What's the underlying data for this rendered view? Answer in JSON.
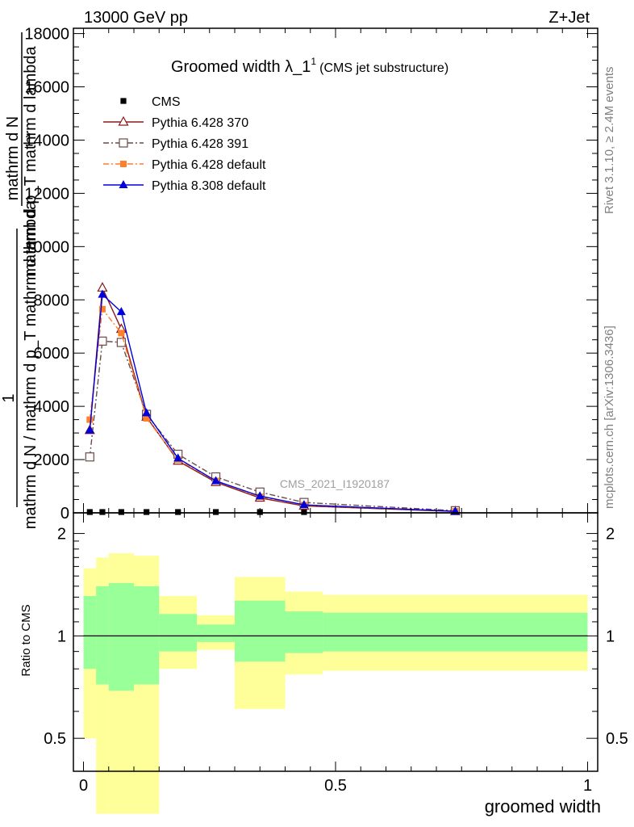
{
  "header": {
    "left": "13000 GeV pp",
    "right": "Z+Jet",
    "title_main": "Groomed width ",
    "title_lambda": "λ_1",
    "title_sup": "1",
    "title_paren": "(CMS jet substructure)",
    "side_rivet": "Rivet 3.1.10, ≥ 2.4M events",
    "side_mcplots": "mcplots.cern.ch [arXiv:1306.3436]",
    "watermark": "CMS_2021_I1920187"
  },
  "axis": {
    "ylabel_one": "1",
    "ylabel_num": "mathrm d N",
    "ylabel_den": "mathrm d N / mathrm d p_T mathrm d lambda",
    "ylabel_extra": "mathrm d p_T mathrm d lambda",
    "ratio_label": "Ratio to CMS",
    "xlabel": "groomed width",
    "x_ticks": [
      "0",
      "0.5",
      "1"
    ],
    "main_ticks": [
      "0",
      "2000",
      "4000",
      "6000",
      "8000",
      "10000",
      "12000",
      "14000",
      "16000",
      "18000"
    ],
    "ratio_ticks": [
      "0.5",
      "1",
      "2"
    ]
  },
  "legend": [
    {
      "key": "cms",
      "label": "CMS"
    },
    {
      "key": "p370",
      "label": "Pythia 6.428 370"
    },
    {
      "key": "p391",
      "label": "Pythia 6.428 391"
    },
    {
      "key": "p6def",
      "label": "Pythia 6.428 default"
    },
    {
      "key": "p8def",
      "label": "Pythia 8.308 default"
    }
  ],
  "chart_data": {
    "type": "line",
    "xlabel": "groomed width",
    "xlim": [
      -0.02,
      1.02
    ],
    "ylim": [
      0,
      18200
    ],
    "ratio_ylim": [
      0.4,
      2.3
    ],
    "x": [
      0.0125,
      0.0375,
      0.075,
      0.125,
      0.1875,
      0.2625,
      0.35,
      0.4375,
      0.7375
    ],
    "series": [
      {
        "name": "CMS",
        "color": "#000000",
        "marker": "square-filled",
        "values": [
          30,
          30,
          30,
          30,
          30,
          30,
          30,
          30,
          30
        ]
      },
      {
        "name": "Pythia 6.428 370",
        "color": "#8b1a1a",
        "dash": "solid",
        "marker": "triangle-open",
        "values": [
          3100,
          8450,
          6900,
          3600,
          1950,
          1150,
          560,
          260,
          50
        ]
      },
      {
        "name": "Pythia 6.428 391",
        "color": "#6b4a4a",
        "dash": "dashdot",
        "marker": "square-open",
        "values": [
          2100,
          6450,
          6400,
          3700,
          2200,
          1350,
          780,
          390,
          80
        ]
      },
      {
        "name": "Pythia 6.428 default",
        "color": "#ff7f2a",
        "dash": "dashdot",
        "marker": "square-filled",
        "values": [
          3500,
          7650,
          6750,
          3550,
          2000,
          1200,
          600,
          290,
          60
        ]
      },
      {
        "name": "Pythia 8.308 default",
        "color": "#0000dd",
        "dash": "solid",
        "marker": "triangle-filled",
        "values": [
          3100,
          8200,
          7550,
          3750,
          2050,
          1200,
          630,
          300,
          60
        ]
      }
    ],
    "ratio_bands": [
      {
        "x0": 0.0,
        "x1": 0.025,
        "y1": [
          0.8,
          1.31
        ],
        "y2": [
          0.5,
          1.58
        ]
      },
      {
        "x0": 0.025,
        "x1": 0.05,
        "y1": [
          0.72,
          1.4
        ],
        "y2": [
          0.3,
          1.7
        ]
      },
      {
        "x0": 0.05,
        "x1": 0.1,
        "y1": [
          0.69,
          1.43
        ],
        "y2": [
          0.3,
          1.75
        ]
      },
      {
        "x0": 0.1,
        "x1": 0.15,
        "y1": [
          0.72,
          1.4
        ],
        "y2": [
          0.3,
          1.72
        ]
      },
      {
        "x0": 0.15,
        "x1": 0.225,
        "y1": [
          0.9,
          1.16
        ],
        "y2": [
          0.8,
          1.31
        ]
      },
      {
        "x0": 0.225,
        "x1": 0.3,
        "y1": [
          0.96,
          1.08
        ],
        "y2": [
          0.91,
          1.15
        ]
      },
      {
        "x0": 0.3,
        "x1": 0.4,
        "y1": [
          0.84,
          1.27
        ],
        "y2": [
          0.61,
          1.49
        ]
      },
      {
        "x0": 0.4,
        "x1": 0.475,
        "y1": [
          0.89,
          1.18
        ],
        "y2": [
          0.77,
          1.35
        ]
      },
      {
        "x0": 0.475,
        "x1": 1.0,
        "y1": [
          0.9,
          1.17
        ],
        "y2": [
          0.79,
          1.32
        ]
      }
    ]
  }
}
